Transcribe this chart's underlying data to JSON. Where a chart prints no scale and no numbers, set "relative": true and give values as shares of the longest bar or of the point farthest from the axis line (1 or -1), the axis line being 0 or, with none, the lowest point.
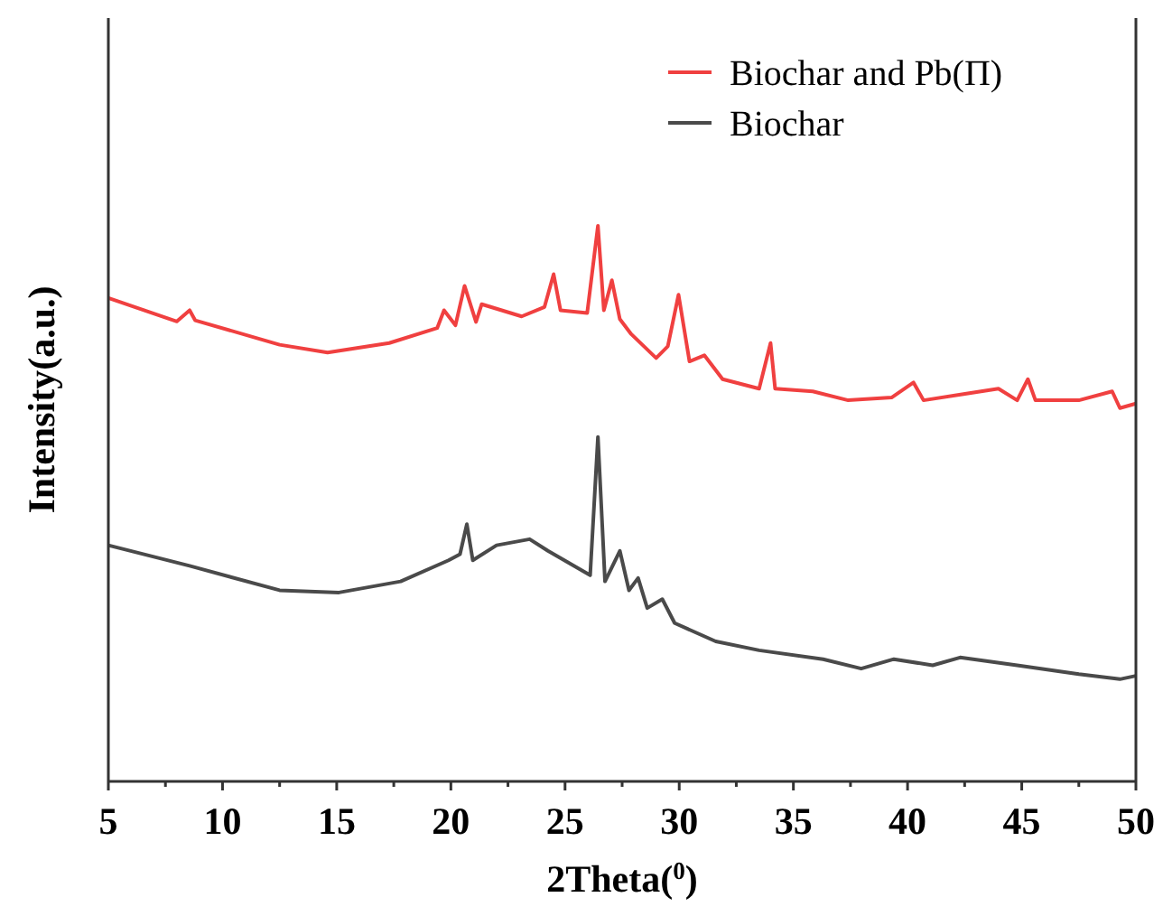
{
  "chart_data": {
    "type": "line",
    "xlabel": "2Theta($^{0}$)",
    "ylabel": "Intensity(a.u.)",
    "relative": true,
    "legend": "top right",
    "marker": "none",
    "line_style": "solid",
    "xlim": [
      5,
      50
    ],
    "xticks": [
      5,
      {
        "value": 7.5,
        "label": null
      },
      10,
      {
        "value": 12.5,
        "label": null
      },
      15,
      {
        "value": 17.5,
        "label": null
      },
      20,
      {
        "value": 22.5,
        "label": null
      },
      25,
      {
        "value": 27.5,
        "label": null
      },
      30,
      {
        "value": 32.5,
        "label": null
      },
      35,
      {
        "value": 37.5,
        "label": null
      },
      40,
      {
        "value": 42.5,
        "label": null
      },
      45,
      {
        "value": 47.5,
        "label": null
      },
      50
    ],
    "series": [
      {
        "name": "Biochar and Pb(Π)",
        "color": "#f04040",
        "x": [
          5,
          8.0,
          8.56,
          8.8,
          12.5,
          14.6,
          17.3,
          19.4,
          19.7,
          20.2,
          20.6,
          21.1,
          21.35,
          23.1,
          24.1,
          24.5,
          24.8,
          25.97,
          26.44,
          26.7,
          27.05,
          27.4,
          27.9,
          28.99,
          29.5,
          29.97,
          30.45,
          31.1,
          31.9,
          33.5,
          34.0,
          34.2,
          35.85,
          37.4,
          39.3,
          40.26,
          40.7,
          42.45,
          43.98,
          44.8,
          45.27,
          45.6,
          47.5,
          48.96,
          49.3,
          50
        ],
        "values": [
          0.87,
          0.828,
          0.848,
          0.83,
          0.786,
          0.772,
          0.789,
          0.816,
          0.848,
          0.821,
          0.892,
          0.827,
          0.859,
          0.837,
          0.854,
          0.913,
          0.848,
          0.843,
          1.0,
          0.848,
          0.902,
          0.832,
          0.805,
          0.762,
          0.783,
          0.876,
          0.756,
          0.767,
          0.724,
          0.707,
          0.789,
          0.707,
          0.702,
          0.686,
          0.691,
          0.718,
          0.686,
          0.697,
          0.707,
          0.686,
          0.724,
          0.686,
          0.686,
          0.702,
          0.672,
          0.68
        ]
      },
      {
        "name": "Biochar",
        "color": "#4a4a4a",
        "x": [
          5,
          8.56,
          12.5,
          15.1,
          17.8,
          19.9,
          20.4,
          20.7,
          20.96,
          22.0,
          23.45,
          24.25,
          26.1,
          26.44,
          26.75,
          27.4,
          27.8,
          28.2,
          28.6,
          29.26,
          29.8,
          31.6,
          33.5,
          36.3,
          37.97,
          39.4,
          41.1,
          42.3,
          44.8,
          47.5,
          49.3,
          50
        ],
        "values": [
          0.425,
          0.388,
          0.344,
          0.34,
          0.36,
          0.398,
          0.409,
          0.463,
          0.398,
          0.425,
          0.436,
          0.415,
          0.371,
          0.62,
          0.36,
          0.415,
          0.344,
          0.366,
          0.312,
          0.328,
          0.285,
          0.252,
          0.236,
          0.22,
          0.203,
          0.22,
          0.209,
          0.223,
          0.209,
          0.193,
          0.184,
          0.19
        ]
      }
    ]
  }
}
